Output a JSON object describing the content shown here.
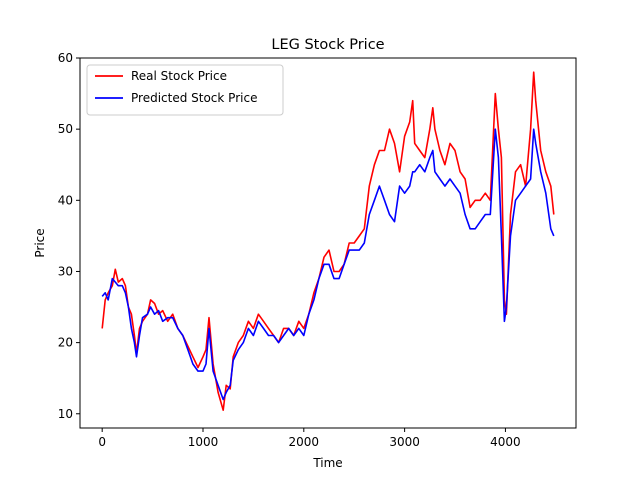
{
  "chart_data": {
    "type": "line",
    "title": "LEG Stock Price",
    "xlabel": "Time",
    "ylabel": "Price",
    "xlim": [
      -220,
      4700
    ],
    "ylim": [
      8,
      60
    ],
    "xticks": [
      0,
      1000,
      2000,
      3000,
      4000
    ],
    "yticks": [
      10,
      20,
      30,
      40,
      50,
      60
    ],
    "legend_position": "top-left",
    "grid": false,
    "series": [
      {
        "name": "Real Stock Price",
        "color": "#ff0000",
        "points": [
          [
            0,
            22
          ],
          [
            30,
            26
          ],
          [
            60,
            27
          ],
          [
            100,
            28
          ],
          [
            130,
            30.3
          ],
          [
            160,
            28.5
          ],
          [
            200,
            29
          ],
          [
            230,
            28
          ],
          [
            260,
            25
          ],
          [
            290,
            24
          ],
          [
            320,
            21
          ],
          [
            340,
            18.5
          ],
          [
            370,
            22
          ],
          [
            400,
            23
          ],
          [
            450,
            24
          ],
          [
            480,
            26
          ],
          [
            520,
            25.5
          ],
          [
            560,
            24
          ],
          [
            600,
            24.5
          ],
          [
            650,
            23
          ],
          [
            700,
            24
          ],
          [
            750,
            22
          ],
          [
            800,
            21
          ],
          [
            850,
            19.5
          ],
          [
            900,
            18
          ],
          [
            950,
            16.5
          ],
          [
            1000,
            18
          ],
          [
            1030,
            19
          ],
          [
            1060,
            23.5
          ],
          [
            1100,
            17
          ],
          [
            1150,
            13
          ],
          [
            1200,
            10.5
          ],
          [
            1230,
            14
          ],
          [
            1270,
            13.5
          ],
          [
            1300,
            18
          ],
          [
            1350,
            20
          ],
          [
            1400,
            21
          ],
          [
            1450,
            23
          ],
          [
            1500,
            22
          ],
          [
            1550,
            24
          ],
          [
            1600,
            23
          ],
          [
            1650,
            22
          ],
          [
            1700,
            21
          ],
          [
            1750,
            20
          ],
          [
            1800,
            22
          ],
          [
            1850,
            22
          ],
          [
            1900,
            21
          ],
          [
            1950,
            23
          ],
          [
            2000,
            22
          ],
          [
            2050,
            24
          ],
          [
            2100,
            27
          ],
          [
            2150,
            29
          ],
          [
            2200,
            32
          ],
          [
            2250,
            33
          ],
          [
            2300,
            30
          ],
          [
            2350,
            30
          ],
          [
            2400,
            31
          ],
          [
            2450,
            34
          ],
          [
            2500,
            34
          ],
          [
            2550,
            35
          ],
          [
            2600,
            36
          ],
          [
            2650,
            42
          ],
          [
            2700,
            45
          ],
          [
            2750,
            47
          ],
          [
            2800,
            47
          ],
          [
            2850,
            50
          ],
          [
            2900,
            48
          ],
          [
            2950,
            44
          ],
          [
            3000,
            49
          ],
          [
            3050,
            51
          ],
          [
            3080,
            54
          ],
          [
            3100,
            48
          ],
          [
            3150,
            47
          ],
          [
            3200,
            46
          ],
          [
            3250,
            50
          ],
          [
            3280,
            53
          ],
          [
            3300,
            50
          ],
          [
            3350,
            47
          ],
          [
            3400,
            45
          ],
          [
            3450,
            48
          ],
          [
            3500,
            47
          ],
          [
            3550,
            44
          ],
          [
            3600,
            43
          ],
          [
            3650,
            39
          ],
          [
            3700,
            40
          ],
          [
            3750,
            40
          ],
          [
            3800,
            41
          ],
          [
            3850,
            40
          ],
          [
            3900,
            55
          ],
          [
            3930,
            50
          ],
          [
            3960,
            46
          ],
          [
            3990,
            26
          ],
          [
            4010,
            24
          ],
          [
            4050,
            38
          ],
          [
            4100,
            44
          ],
          [
            4150,
            45
          ],
          [
            4200,
            42
          ],
          [
            4250,
            50
          ],
          [
            4280,
            58
          ],
          [
            4300,
            54
          ],
          [
            4350,
            47
          ],
          [
            4400,
            44
          ],
          [
            4450,
            42
          ],
          [
            4480,
            38
          ]
        ]
      },
      {
        "name": "Predicted Stock Price",
        "color": "#0000ff",
        "points": [
          [
            0,
            26.5
          ],
          [
            30,
            27
          ],
          [
            60,
            26
          ],
          [
            100,
            29
          ],
          [
            130,
            28.5
          ],
          [
            160,
            28
          ],
          [
            200,
            28
          ],
          [
            230,
            27
          ],
          [
            260,
            25
          ],
          [
            290,
            22
          ],
          [
            320,
            20
          ],
          [
            340,
            18
          ],
          [
            370,
            21
          ],
          [
            400,
            23.5
          ],
          [
            450,
            24
          ],
          [
            480,
            25
          ],
          [
            520,
            24
          ],
          [
            560,
            24.5
          ],
          [
            600,
            23
          ],
          [
            650,
            23.5
          ],
          [
            700,
            23.5
          ],
          [
            750,
            22
          ],
          [
            800,
            21
          ],
          [
            850,
            19
          ],
          [
            900,
            17
          ],
          [
            950,
            16
          ],
          [
            1000,
            16
          ],
          [
            1030,
            17
          ],
          [
            1060,
            22
          ],
          [
            1100,
            16
          ],
          [
            1150,
            14
          ],
          [
            1200,
            12
          ],
          [
            1230,
            13
          ],
          [
            1270,
            14
          ],
          [
            1300,
            17.5
          ],
          [
            1350,
            19
          ],
          [
            1400,
            20
          ],
          [
            1450,
            22
          ],
          [
            1500,
            21
          ],
          [
            1550,
            23
          ],
          [
            1600,
            22
          ],
          [
            1650,
            21
          ],
          [
            1700,
            21
          ],
          [
            1750,
            20
          ],
          [
            1800,
            21
          ],
          [
            1850,
            22
          ],
          [
            1900,
            21
          ],
          [
            1950,
            22
          ],
          [
            2000,
            21
          ],
          [
            2050,
            24
          ],
          [
            2100,
            26
          ],
          [
            2150,
            29
          ],
          [
            2200,
            31
          ],
          [
            2250,
            31
          ],
          [
            2300,
            29
          ],
          [
            2350,
            29
          ],
          [
            2400,
            31
          ],
          [
            2450,
            33
          ],
          [
            2500,
            33
          ],
          [
            2550,
            33
          ],
          [
            2600,
            34
          ],
          [
            2650,
            38
          ],
          [
            2700,
            40
          ],
          [
            2750,
            42
          ],
          [
            2800,
            40
          ],
          [
            2850,
            38
          ],
          [
            2900,
            37
          ],
          [
            2950,
            42
          ],
          [
            3000,
            41
          ],
          [
            3050,
            42
          ],
          [
            3080,
            44
          ],
          [
            3100,
            44
          ],
          [
            3150,
            45
          ],
          [
            3200,
            44
          ],
          [
            3250,
            46
          ],
          [
            3280,
            47
          ],
          [
            3300,
            44
          ],
          [
            3350,
            43
          ],
          [
            3400,
            42
          ],
          [
            3450,
            43
          ],
          [
            3500,
            42
          ],
          [
            3550,
            41
          ],
          [
            3600,
            38
          ],
          [
            3650,
            36
          ],
          [
            3700,
            36
          ],
          [
            3750,
            37
          ],
          [
            3800,
            38
          ],
          [
            3850,
            38
          ],
          [
            3900,
            50
          ],
          [
            3930,
            46
          ],
          [
            3960,
            35
          ],
          [
            3990,
            23
          ],
          [
            4010,
            25
          ],
          [
            4050,
            35
          ],
          [
            4100,
            40
          ],
          [
            4150,
            41
          ],
          [
            4200,
            42
          ],
          [
            4250,
            43
          ],
          [
            4280,
            50
          ],
          [
            4300,
            48
          ],
          [
            4350,
            44
          ],
          [
            4400,
            41
          ],
          [
            4450,
            36
          ],
          [
            4480,
            35
          ]
        ]
      }
    ]
  }
}
